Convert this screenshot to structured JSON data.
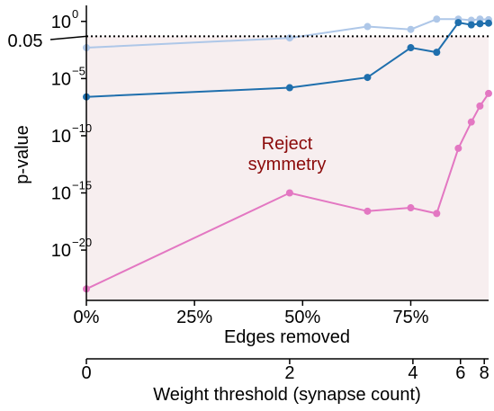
{
  "chart_data": {
    "type": "line",
    "y_scale": "log",
    "xlim": [
      0,
      93
    ],
    "ylim_log10": [
      -24.4,
      1.4
    ],
    "xlabel": "Edges removed",
    "ylabel": "p-value",
    "x_ticks": [
      {
        "value": 0,
        "label": "0%"
      },
      {
        "value": 25,
        "label": "25%"
      },
      {
        "value": 50,
        "label": "50%"
      },
      {
        "value": 75,
        "label": "75%"
      }
    ],
    "y_ticks": [
      {
        "exp": 0,
        "base": "10",
        "sup": "0"
      },
      {
        "exp": -5,
        "base": "10",
        "sup": "−5"
      },
      {
        "exp": -10,
        "base": "10",
        "sup": "−10"
      },
      {
        "exp": -15,
        "base": "10",
        "sup": "−15"
      },
      {
        "exp": -20,
        "base": "10",
        "sup": "−20"
      }
    ],
    "threshold": {
      "value": 0.05,
      "label": "0.05"
    },
    "reject_region": {
      "label_line1": "Reject",
      "label_line2": "symmetry",
      "color": "#f7eeef"
    },
    "annotation_color": "#8b0a0a",
    "secondary_axis": {
      "label": "Weight threshold (synapse count)",
      "ticks": [
        {
          "label": "0",
          "at_edges_removed": 0
        },
        {
          "label": "2",
          "at_edges_removed": 47
        },
        {
          "label": "4",
          "at_edges_removed": 75.5
        },
        {
          "label": "6",
          "at_edges_removed": 86.5
        },
        {
          "label": "8",
          "at_edges_removed": 92
        }
      ]
    },
    "series": [
      {
        "color": "#aec7e8",
        "points": [
          [
            0,
            -2.3
          ],
          [
            47,
            -1.45
          ],
          [
            65,
            -0.45
          ],
          [
            75,
            -0.7
          ],
          [
            81,
            0.2
          ],
          [
            86,
            0.2
          ],
          [
            89,
            0.1
          ],
          [
            91,
            0.2
          ],
          [
            93,
            0.15
          ]
        ]
      },
      {
        "color": "#1f6fad",
        "points": [
          [
            0,
            -6.6
          ],
          [
            47,
            -5.8
          ],
          [
            65,
            -4.9
          ],
          [
            75,
            -2.3
          ],
          [
            81,
            -2.7
          ],
          [
            86,
            -0.1
          ],
          [
            89,
            -0.3
          ],
          [
            91,
            -0.2
          ],
          [
            93,
            -0.15
          ]
        ]
      },
      {
        "color": "#e377c2",
        "points": [
          [
            0,
            -23.4
          ],
          [
            47,
            -15.0
          ],
          [
            65,
            -16.6
          ],
          [
            75,
            -16.3
          ],
          [
            81,
            -16.8
          ],
          [
            86,
            -11.1
          ],
          [
            89,
            -8.8
          ],
          [
            91,
            -7.4
          ],
          [
            93,
            -6.3
          ]
        ]
      }
    ]
  }
}
